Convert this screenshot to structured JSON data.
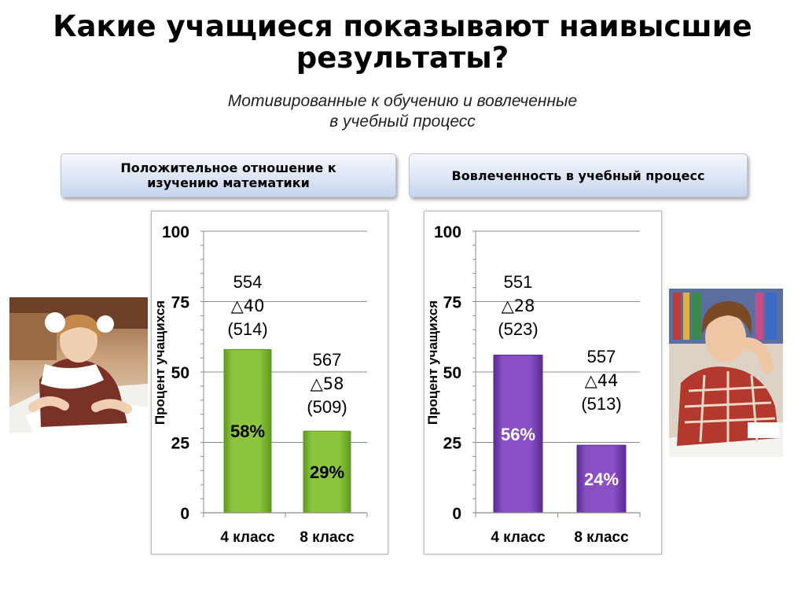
{
  "title_lines": [
    "Какие учащиеся показывают наивысшие",
    "результаты?"
  ],
  "subtitle_lines": [
    "Мотивированные к обучению и вовлеченные",
    "в учебный процесс"
  ],
  "panels": [
    {
      "header_lines": [
        "Положительное отношение к",
        "изучению математики"
      ]
    },
    {
      "header_lines": [
        "Вовлеченность в учебный процесс"
      ]
    }
  ],
  "photos": [
    {
      "icon": "student-girl-writing-photo"
    },
    {
      "icon": "student-boy-thinking-photo"
    }
  ],
  "chart_data": [
    {
      "type": "bar",
      "categories": [
        "4 класс",
        "8 класс"
      ],
      "values": [
        58,
        29
      ],
      "value_labels": [
        "58%",
        "29%"
      ],
      "annotations": [
        {
          "score": "554",
          "delta": "△40",
          "ref": "(514)"
        },
        {
          "score": "567",
          "delta": "△58",
          "ref": "(509)"
        }
      ],
      "ylabel": "Процент учащихся",
      "ylim": [
        0,
        100
      ],
      "yticks": [
        0,
        25,
        50,
        75,
        100
      ],
      "grid": true,
      "bar_color": "#8cc63f",
      "bar_color_dark": "#5e9a1c",
      "label_color": "#000000"
    },
    {
      "type": "bar",
      "categories": [
        "4 класс",
        "8 класс"
      ],
      "values": [
        56,
        24
      ],
      "value_labels": [
        "56%",
        "24%"
      ],
      "annotations": [
        {
          "score": "551",
          "delta": "△28",
          "ref": "(523)"
        },
        {
          "score": "557",
          "delta": "△44",
          "ref": "(513)"
        }
      ],
      "ylabel": "Процент учащихся",
      "ylim": [
        0,
        100
      ],
      "yticks": [
        0,
        25,
        50,
        75,
        100
      ],
      "grid": true,
      "bar_color": "#8a4fc4",
      "bar_color_dark": "#5c2a94",
      "label_color": "#ffffff"
    }
  ]
}
